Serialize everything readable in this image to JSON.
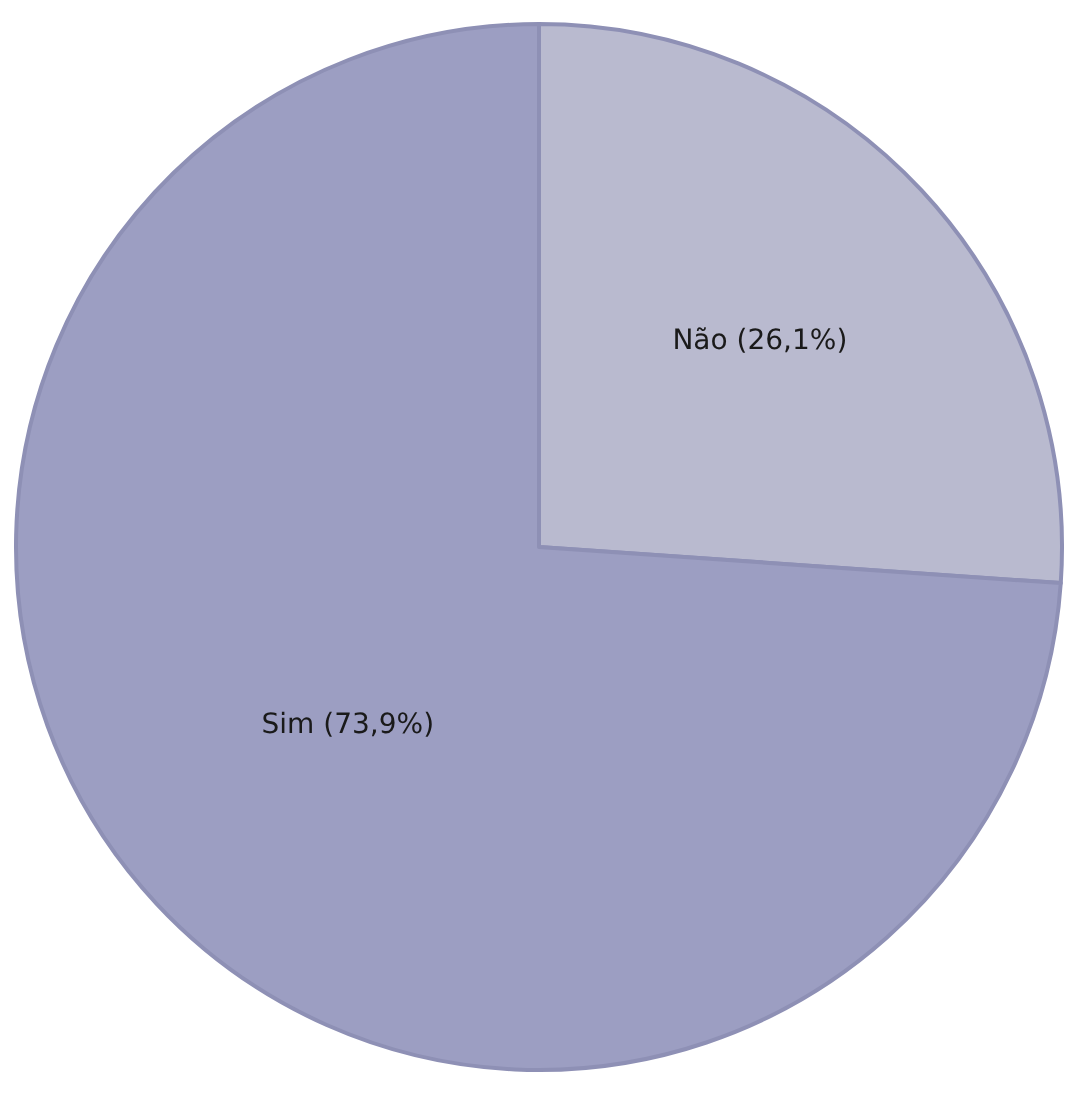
{
  "chart_data": {
    "type": "pie",
    "categories": [
      "Não",
      "Sim"
    ],
    "values": [
      26.1,
      73.9
    ],
    "value_labels": [
      "(26,1%)",
      "(73,9%)"
    ],
    "colors": [
      "#b9bacf",
      "#9c9ec2"
    ],
    "legend": false
  }
}
